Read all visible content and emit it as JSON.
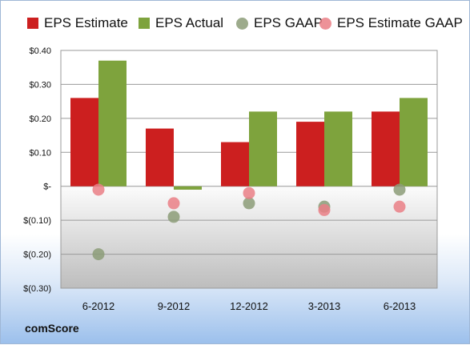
{
  "brand": "comScore",
  "colors": {
    "eps_estimate": "#cc1f1f",
    "eps_actual": "#7ea33d",
    "eps_gaap": "#8c9c78",
    "eps_estimate_gaap": "#ea7f86"
  },
  "chart_data": {
    "type": "bar",
    "categories": [
      "6-2012",
      "9-2012",
      "12-2012",
      "3-2013",
      "6-2013"
    ],
    "series": [
      {
        "name": "EPS Estimate",
        "kind": "bar",
        "values": [
          0.26,
          0.17,
          0.13,
          0.19,
          0.22
        ]
      },
      {
        "name": "EPS Actual",
        "kind": "bar",
        "values": [
          0.37,
          -0.01,
          0.22,
          0.22,
          0.26
        ]
      },
      {
        "name": "EPS GAAP",
        "kind": "point",
        "values": [
          -0.2,
          -0.09,
          -0.05,
          -0.06,
          -0.01
        ]
      },
      {
        "name": "EPS Estimate GAAP",
        "kind": "point",
        "values": [
          -0.01,
          -0.05,
          -0.02,
          -0.07,
          -0.06
        ]
      }
    ],
    "y_ticks": [
      0.4,
      0.3,
      0.2,
      0.1,
      0,
      -0.1,
      -0.2,
      -0.3
    ],
    "y_tick_labels": [
      "$0.40",
      "$0.30",
      "$0.20",
      "$0.10",
      "$-",
      "$(0.10)",
      "$(0.20)",
      "$(0.30)"
    ],
    "ylim": [
      -0.3,
      0.4
    ],
    "grid": true,
    "legend_position": "top",
    "title": "",
    "xlabel": "",
    "ylabel": ""
  }
}
